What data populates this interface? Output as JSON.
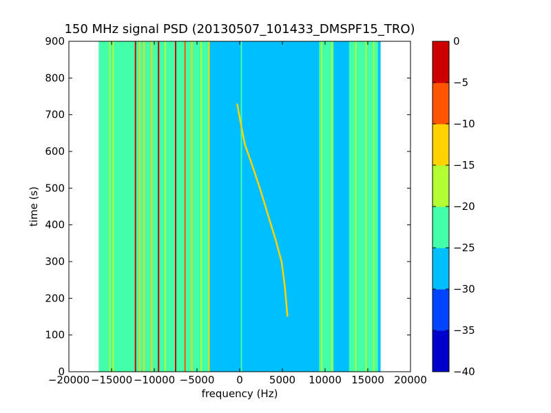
{
  "chart_data": {
    "type": "heatmap",
    "title": "150 MHz signal PSD (20130507_101433_DMSPF15_TRO)",
    "xlabel": "frequency (Hz)",
    "ylabel": "time (s)",
    "xlim": [
      -20000,
      20000
    ],
    "ylim": [
      0,
      900
    ],
    "xticks": [
      -20000,
      -15000,
      -10000,
      -5000,
      0,
      5000,
      10000,
      15000,
      20000
    ],
    "xtick_labels": [
      "−20000",
      "−15000",
      "−10000",
      "−5000",
      "0",
      "5000",
      "10000",
      "15000",
      "20000"
    ],
    "yticks": [
      0,
      100,
      200,
      300,
      400,
      500,
      600,
      700,
      800,
      900
    ],
    "ytick_labels": [
      "0",
      "100",
      "200",
      "300",
      "400",
      "500",
      "600",
      "700",
      "800",
      "900"
    ],
    "data_extent_hz": [
      -16500,
      16500
    ],
    "background_level_db": -28,
    "colorbar": {
      "levels": [
        -40,
        -35,
        -30,
        -25,
        -20,
        -15,
        -10,
        -5,
        0
      ],
      "tick_labels": [
        "−40",
        "−35",
        "−30",
        "−25",
        "−20",
        "−15",
        "−10",
        "−5",
        "0"
      ],
      "colors": [
        "#0000cc",
        "#0044ff",
        "#00bfff",
        "#44ffaa",
        "#b4ff33",
        "#ffd200",
        "#ff5500",
        "#cc0000"
      ]
    },
    "regions": [
      {
        "from_hz": -16500,
        "to_hz": -3500,
        "level_db": -23
      },
      {
        "from_hz": 9300,
        "to_hz": 11000,
        "level_db": -24
      },
      {
        "from_hz": 12800,
        "to_hz": 16200,
        "level_db": -24
      }
    ],
    "vertical_lines": [
      {
        "freq_hz": -15200,
        "level_db": -16
      },
      {
        "freq_hz": -14800,
        "level_db": -18
      },
      {
        "freq_hz": -12200,
        "level_db": -3
      },
      {
        "freq_hz": -11700,
        "level_db": -13
      },
      {
        "freq_hz": -11200,
        "level_db": -15
      },
      {
        "freq_hz": -10300,
        "level_db": -14
      },
      {
        "freq_hz": -9500,
        "level_db": -4
      },
      {
        "freq_hz": -8700,
        "level_db": -17
      },
      {
        "freq_hz": -7500,
        "level_db": -2
      },
      {
        "freq_hz": -6400,
        "level_db": -8
      },
      {
        "freq_hz": -5600,
        "level_db": -15
      },
      {
        "freq_hz": -4500,
        "level_db": -17
      },
      {
        "freq_hz": -3600,
        "level_db": -14
      },
      {
        "freq_hz": 200,
        "level_db": -22
      },
      {
        "freq_hz": 9600,
        "level_db": -17
      },
      {
        "freq_hz": 10800,
        "level_db": -18
      },
      {
        "freq_hz": 13600,
        "level_db": -18
      },
      {
        "freq_hz": 14800,
        "level_db": -17
      },
      {
        "freq_hz": 15700,
        "level_db": -20
      }
    ],
    "doppler_trace": {
      "level_db": -14,
      "points": [
        [
          -300,
          730
        ],
        [
          100,
          680
        ],
        [
          600,
          620
        ],
        [
          1500,
          560
        ],
        [
          2500,
          490
        ],
        [
          3400,
          420
        ],
        [
          4200,
          360
        ],
        [
          4900,
          300
        ],
        [
          5300,
          230
        ],
        [
          5600,
          150
        ]
      ]
    }
  }
}
